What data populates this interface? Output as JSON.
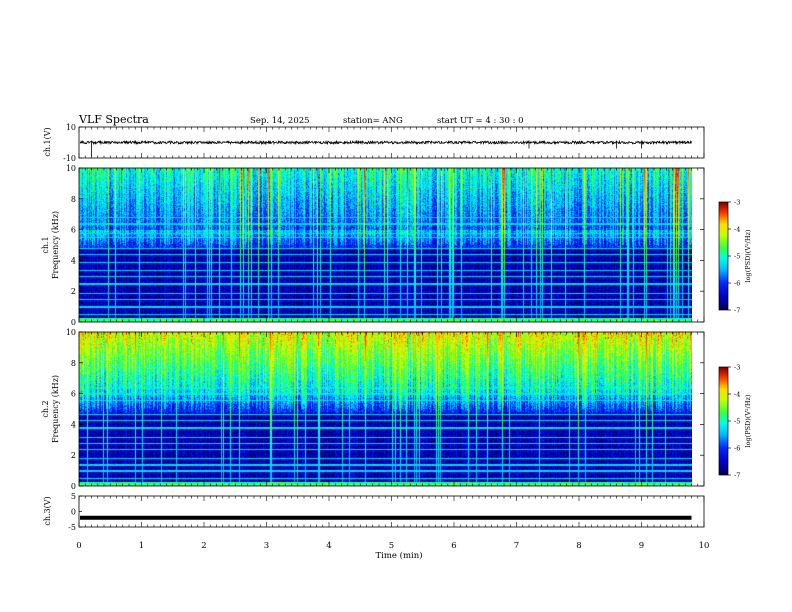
{
  "header": {
    "title": "VLF Spectra",
    "date": "Sep. 14, 2025",
    "station": "station= ANG",
    "start": "start  UT =   4 : 30 : 0"
  },
  "chart_data": [
    {
      "type": "line",
      "name": "ch1-waveform",
      "ylabel": "ch.1(V)",
      "ylim": [
        -10,
        10
      ],
      "yticks": [
        "10",
        "-10"
      ],
      "baseline": 0,
      "xlim": [
        0,
        10
      ]
    },
    {
      "type": "heatmap",
      "name": "ch1-spectrogram",
      "ylabel_line1": "ch.1",
      "ylabel_line2": "Frequency (kHz)",
      "ylim": [
        0,
        10
      ],
      "yticks": [
        "0",
        "2",
        "4",
        "6",
        "8",
        "10"
      ],
      "xlim": [
        0,
        10
      ],
      "colorbar": {
        "label": "log(PSD)(V²/Hz)",
        "range": [
          -7,
          -3
        ],
        "ticks": [
          "-3",
          "-4",
          "-5",
          "-6",
          "-7"
        ]
      }
    },
    {
      "type": "heatmap",
      "name": "ch2-spectrogram",
      "ylabel_line1": "ch.2",
      "ylabel_line2": "Frequency (kHz)",
      "ylim": [
        0,
        10
      ],
      "yticks": [
        "0",
        "2",
        "4",
        "6",
        "8",
        "10"
      ],
      "xlim": [
        0,
        10
      ],
      "colorbar": {
        "label": "log(PSD)(V²/Hz)",
        "range": [
          -7,
          -3
        ],
        "ticks": [
          "-3",
          "-4",
          "-5",
          "-6",
          "-7"
        ]
      }
    },
    {
      "type": "line",
      "name": "ch3-waveform",
      "ylabel": "ch.3(V)",
      "ylim": [
        -5,
        5
      ],
      "yticks": [
        "5",
        "0",
        "-5"
      ],
      "baseline": -2,
      "xlim": [
        0,
        10
      ]
    }
  ],
  "xaxis": {
    "label": "Time (min)",
    "ticks": [
      "0",
      "1",
      "2",
      "3",
      "4",
      "5",
      "6",
      "7",
      "8",
      "9",
      "10"
    ],
    "data_end": 9.8
  },
  "colors": {
    "dark_blue": "#00007a",
    "blue": "#0000ff",
    "cyan": "#00e5ff",
    "green": "#3cff3c",
    "yellow": "#ffff00",
    "red": "#ff0000",
    "dark_red": "#7a0000"
  }
}
